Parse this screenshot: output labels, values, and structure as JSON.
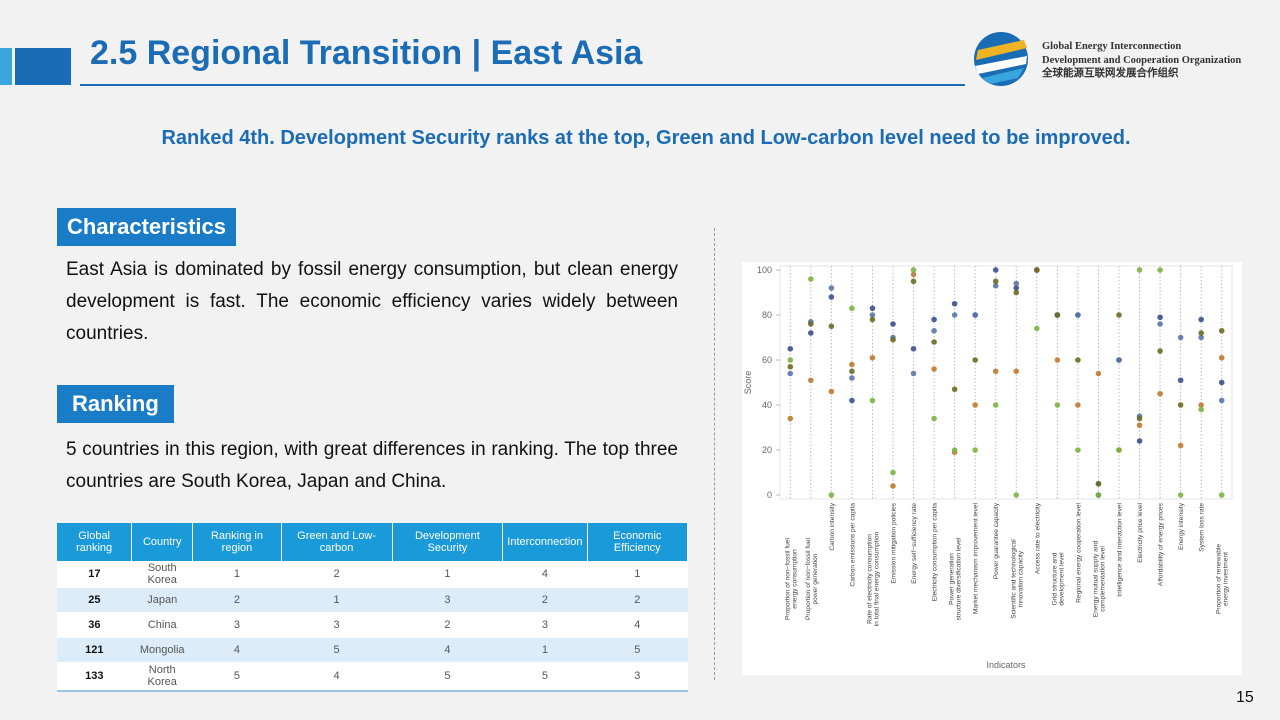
{
  "header": {
    "title": "2.5 Regional Transition | East Asia",
    "org_lines": [
      "Global Energy Interconnection",
      "Development and Cooperation Organization",
      "全球能源互联网发展合作组织"
    ]
  },
  "subtitle": "Ranked 4th. Development Security ranks at the top, Green and Low-carbon level need to be improved.",
  "sections": [
    {
      "heading": "Characteristics",
      "text": "East Asia is dominated by fossil energy consumption, but clean energy development is fast. The economic efficiency varies widely between countries."
    },
    {
      "heading": "Ranking",
      "text": "5 countries in this region, with great differences in ranking. The top three countries are South Korea, Japan and China."
    }
  ],
  "table": {
    "columns": [
      "Global ranking",
      "Country",
      "Ranking in region",
      "Green and Low-carbon",
      "Development Security",
      "Interconnection",
      "Economic Efficiency"
    ],
    "rows": [
      [
        17,
        "South Korea",
        1,
        2,
        1,
        4,
        1
      ],
      [
        25,
        "Japan",
        2,
        1,
        3,
        2,
        2
      ],
      [
        36,
        "China",
        3,
        3,
        2,
        3,
        4
      ],
      [
        121,
        "Mongolia",
        4,
        5,
        4,
        1,
        5
      ],
      [
        133,
        "North Korea",
        5,
        4,
        5,
        5,
        3
      ]
    ]
  },
  "chart_data": {
    "type": "scatter",
    "y_label": "Score",
    "x_label": "Indicators",
    "ylim": [
      0,
      100
    ],
    "yticks": [
      0,
      20,
      40,
      60,
      80,
      100
    ],
    "grid": true,
    "categories": [
      [
        "Proportion of non−fossil fuel",
        "energy consumption"
      ],
      [
        "Proportion of non−fossil fuel",
        "power generation"
      ],
      [
        "Carbon intensity"
      ],
      [
        "Carbon emissions per capita"
      ],
      [
        "Rate of electricity consumption",
        "in total final energy consumption"
      ],
      [
        "Emission mitigation policies"
      ],
      [
        "Energy self−sufficiency rate"
      ],
      [
        "Electricity consumption per capita"
      ],
      [
        "Power generation",
        "structure diversification level"
      ],
      [
        "Market mechanism improvement level"
      ],
      [
        "Power guarantee capacity"
      ],
      [
        "Scientific and technological",
        "innovation capacity"
      ],
      [
        "Access rate to electricity"
      ],
      [
        "Grid structure and",
        "development level"
      ],
      [
        "Regional energy cooperation level"
      ],
      [
        "Energy mutual supply and",
        "complementation level"
      ],
      [
        "Intelligence and interaction level"
      ],
      [
        "Electricity price level"
      ],
      [
        "Affordability of energy prices"
      ],
      [
        "Energy intensity"
      ],
      [
        "System loss rate"
      ],
      [
        "Proportion of renewable",
        "energy investment"
      ]
    ],
    "series": [
      {
        "color": "#3a4f8c",
        "values": [
          65,
          72,
          88,
          42,
          83,
          76,
          65,
          78,
          85,
          80,
          100,
          92,
          100,
          80,
          80,
          0,
          60,
          24,
          79,
          51,
          78,
          50
        ]
      },
      {
        "color": "#5a76a8",
        "values": [
          54,
          77,
          92,
          52,
          80,
          70,
          54,
          73,
          80,
          80,
          93,
          94,
          100,
          80,
          80,
          5,
          60,
          35,
          76,
          70,
          70,
          42
        ]
      },
      {
        "color": "#c07a30",
        "values": [
          34,
          51,
          46,
          58,
          61,
          4,
          98,
          56,
          19,
          40,
          55,
          55,
          100,
          60,
          40,
          54,
          20,
          31,
          45,
          22,
          40,
          61
        ]
      },
      {
        "color": "#6b6a22",
        "values": [
          57,
          76,
          75,
          55,
          78,
          69,
          95,
          68,
          47,
          60,
          95,
          90,
          100,
          80,
          60,
          5,
          80,
          34,
          64,
          40,
          72,
          73
        ]
      },
      {
        "color": "#7cb342",
        "values": [
          60,
          96,
          0,
          83,
          42,
          10,
          100,
          34,
          20,
          20,
          40,
          0,
          74,
          40,
          20,
          0,
          20,
          100,
          100,
          0,
          38,
          0
        ]
      }
    ]
  },
  "page_number": 15
}
